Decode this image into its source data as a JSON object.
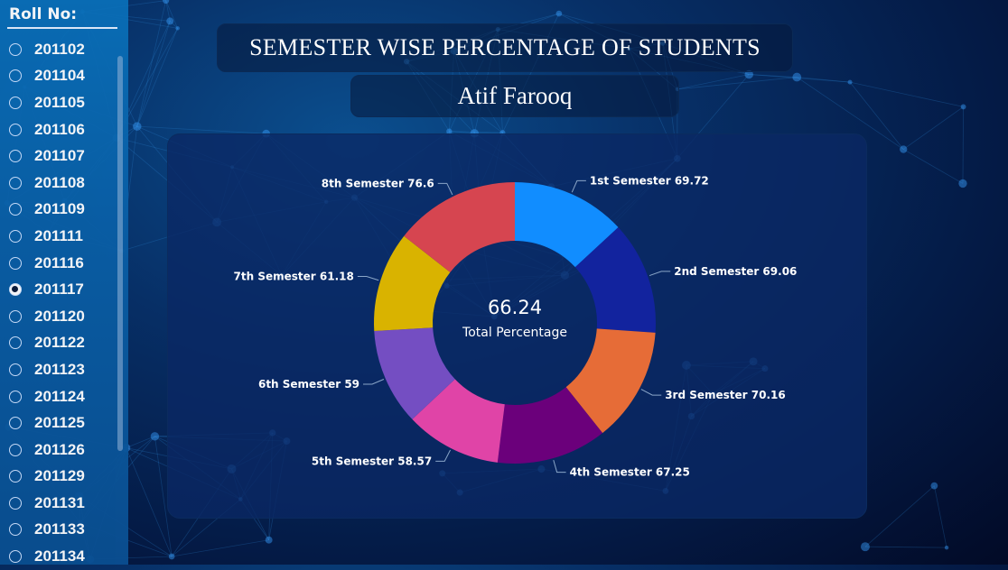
{
  "sidebar": {
    "title": "Roll No:",
    "items": [
      {
        "label": "201102",
        "selected": false
      },
      {
        "label": "201104",
        "selected": false
      },
      {
        "label": "201105",
        "selected": false
      },
      {
        "label": "201106",
        "selected": false
      },
      {
        "label": "201107",
        "selected": false
      },
      {
        "label": "201108",
        "selected": false
      },
      {
        "label": "201109",
        "selected": false
      },
      {
        "label": "201111",
        "selected": false
      },
      {
        "label": "201116",
        "selected": false
      },
      {
        "label": "201117",
        "selected": true
      },
      {
        "label": "201120",
        "selected": false
      },
      {
        "label": "201122",
        "selected": false
      },
      {
        "label": "201123",
        "selected": false
      },
      {
        "label": "201124",
        "selected": false
      },
      {
        "label": "201125",
        "selected": false
      },
      {
        "label": "201126",
        "selected": false
      },
      {
        "label": "201129",
        "selected": false
      },
      {
        "label": "201131",
        "selected": false
      },
      {
        "label": "201133",
        "selected": false
      },
      {
        "label": "201134",
        "selected": false
      }
    ]
  },
  "header": {
    "title": "SEMESTER WISE PERCENTAGE OF STUDENTS",
    "student_name": "Atif Farooq"
  },
  "chart_data": {
    "type": "pie",
    "variant": "donut",
    "center_value": "66.24",
    "center_label": "Total Percentage",
    "categories": [
      "1st Semester",
      "2nd Semester",
      "3rd Semester",
      "4th Semester",
      "5th Semester",
      "6th Semester",
      "7th Semester",
      "8th Semester"
    ],
    "values": [
      69.72,
      69.06,
      70.16,
      67.25,
      58.57,
      59,
      61.18,
      76.6
    ],
    "data_labels": [
      "1st Semester 69.72",
      "2nd Semester 69.06",
      "3rd Semester 70.16",
      "4th Semester 67.25",
      "5th Semester 58.57",
      "6th Semester 59",
      "7th Semester 61.18",
      "8th Semester 76.6"
    ],
    "colors": [
      "#118DFF",
      "#12239E",
      "#E66C37",
      "#6B007B",
      "#E044A7",
      "#744EC2",
      "#D9B300",
      "#D64550"
    ]
  }
}
